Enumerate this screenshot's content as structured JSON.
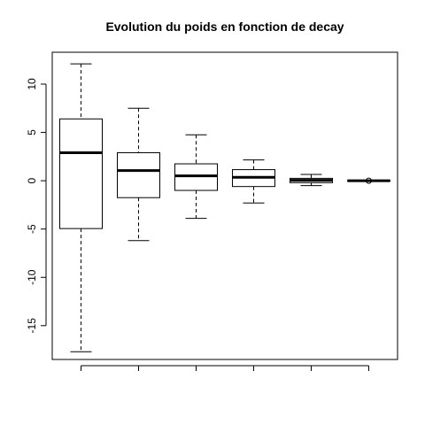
{
  "chart_data": {
    "type": "box",
    "title": "Evolution du poids en fonction de decay",
    "xlabel": "",
    "ylabel": "",
    "ylim": [
      -18.5,
      13.3
    ],
    "yticks": [
      10,
      5,
      0,
      -5,
      -10,
      -15
    ],
    "ytick_labels": [
      "10",
      "5",
      "0",
      "-5",
      "-10",
      "-15"
    ],
    "categories": [
      "",
      "",
      "",
      "",
      "",
      ""
    ],
    "boxes": [
      {
        "whisker_low": -17.7,
        "q1": -4.95,
        "median": 2.9,
        "q3": 6.4,
        "whisker_high": 12.1,
        "outliers": []
      },
      {
        "whisker_low": -6.2,
        "q1": -1.75,
        "median": 1.05,
        "q3": 2.9,
        "whisker_high": 7.5,
        "outliers": []
      },
      {
        "whisker_low": -3.9,
        "q1": -1.0,
        "median": 0.5,
        "q3": 1.75,
        "whisker_high": 4.75,
        "outliers": []
      },
      {
        "whisker_low": -2.3,
        "q1": -0.6,
        "median": 0.35,
        "q3": 1.15,
        "whisker_high": 2.15,
        "outliers": []
      },
      {
        "whisker_low": -0.5,
        "q1": -0.2,
        "median": 0.05,
        "q3": 0.25,
        "whisker_high": 0.65,
        "outliers": []
      },
      {
        "whisker_low": -0.02,
        "q1": -0.01,
        "median": 0.0,
        "q3": 0.01,
        "whisker_high": 0.02,
        "outliers": [
          0.0
        ]
      }
    ],
    "colors": {
      "box_fill": "#ffffff",
      "stroke": "#000000"
    },
    "grid": false,
    "legend": "none"
  }
}
